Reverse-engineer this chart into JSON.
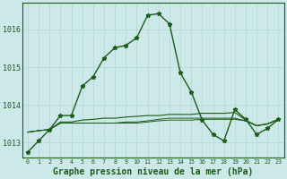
{
  "background_color": "#cce8e8",
  "grid_color": "#aacccc",
  "line_color": "#1a5c1a",
  "xlabel": "Graphe pression niveau de la mer (hPa)",
  "xlabel_fontsize": 7,
  "yticks": [
    1013,
    1014,
    1015,
    1016
  ],
  "xticks": [
    0,
    1,
    2,
    3,
    4,
    5,
    6,
    7,
    8,
    9,
    10,
    11,
    12,
    13,
    14,
    15,
    16,
    17,
    18,
    19,
    20,
    21,
    22,
    23
  ],
  "ylim": [
    1012.6,
    1016.7
  ],
  "xlim": [
    -0.5,
    23.5
  ],
  "series1": [
    1012.75,
    1013.05,
    1013.35,
    1013.72,
    1013.72,
    1014.5,
    1014.75,
    1015.25,
    1015.52,
    1015.58,
    1015.78,
    1016.38,
    1016.42,
    1016.15,
    1014.85,
    1014.35,
    1013.6,
    1013.22,
    1013.05,
    1013.88,
    1013.62,
    1013.22,
    1013.38,
    1013.62
  ],
  "series2": [
    1013.28,
    1013.32,
    1013.35,
    1013.55,
    1013.55,
    1013.6,
    1013.62,
    1013.65,
    1013.65,
    1013.68,
    1013.7,
    1013.72,
    1013.72,
    1013.75,
    1013.75,
    1013.75,
    1013.78,
    1013.78,
    1013.78,
    1013.8,
    1013.6,
    1013.45,
    1013.5,
    1013.62
  ],
  "series3": [
    1013.28,
    1013.32,
    1013.35,
    1013.52,
    1013.52,
    1013.52,
    1013.52,
    1013.52,
    1013.52,
    1013.55,
    1013.55,
    1013.58,
    1013.62,
    1013.65,
    1013.65,
    1013.65,
    1013.65,
    1013.65,
    1013.65,
    1013.65,
    1013.58,
    1013.45,
    1013.5,
    1013.62
  ],
  "series4": [
    1013.28,
    1013.32,
    1013.35,
    1013.52,
    1013.52,
    1013.52,
    1013.52,
    1013.52,
    1013.52,
    1013.52,
    1013.52,
    1013.55,
    1013.58,
    1013.6,
    1013.6,
    1013.6,
    1013.62,
    1013.62,
    1013.62,
    1013.62,
    1013.58,
    1013.45,
    1013.5,
    1013.62
  ]
}
